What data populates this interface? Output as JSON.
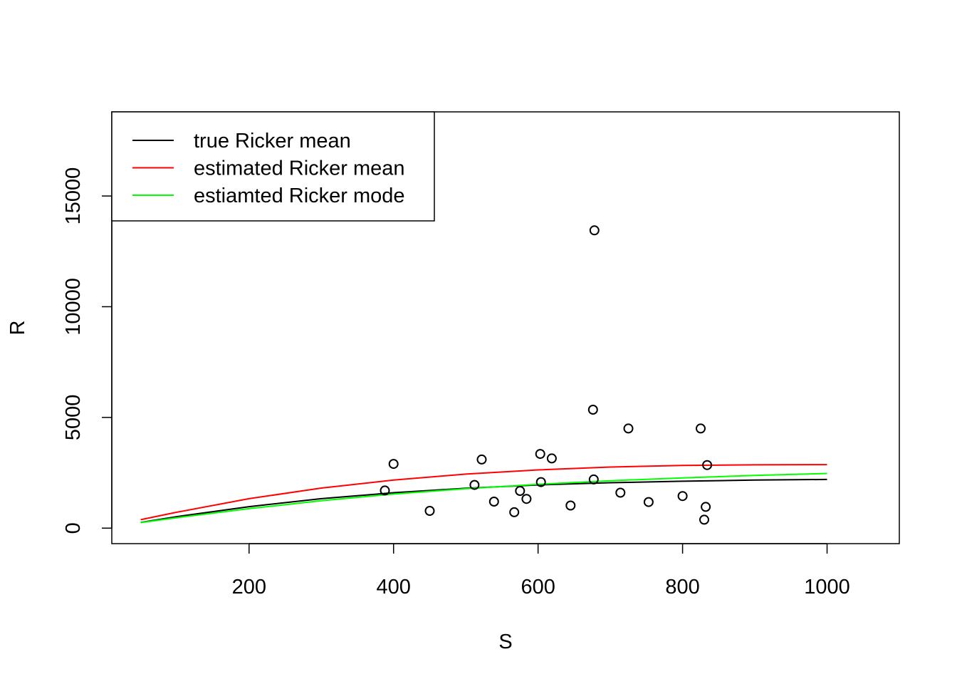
{
  "chart_data": {
    "type": "scatter",
    "title": "",
    "xlabel": "S",
    "ylabel": "R",
    "xlim": [
      10,
      1100
    ],
    "ylim": [
      -700,
      18800
    ],
    "x_ticks": [
      200,
      400,
      600,
      800,
      1000
    ],
    "x_tick_labels": [
      "200",
      "400",
      "600",
      "800",
      "1000"
    ],
    "y_ticks": [
      0,
      5000,
      10000,
      15000
    ],
    "y_tick_labels": [
      "0",
      "5000",
      "10000",
      "15000"
    ],
    "grid": false,
    "legend_position": "top-left",
    "points": [
      {
        "x": 388,
        "y": 1700
      },
      {
        "x": 400,
        "y": 2900
      },
      {
        "x": 450,
        "y": 780
      },
      {
        "x": 512,
        "y": 1950
      },
      {
        "x": 522,
        "y": 3100
      },
      {
        "x": 539,
        "y": 1200
      },
      {
        "x": 567,
        "y": 720
      },
      {
        "x": 575,
        "y": 1680
      },
      {
        "x": 584,
        "y": 1320
      },
      {
        "x": 603,
        "y": 3350
      },
      {
        "x": 604,
        "y": 2080
      },
      {
        "x": 619,
        "y": 3150
      },
      {
        "x": 645,
        "y": 1020
      },
      {
        "x": 676,
        "y": 5350
      },
      {
        "x": 677,
        "y": 2200
      },
      {
        "x": 678,
        "y": 13450
      },
      {
        "x": 714,
        "y": 1600
      },
      {
        "x": 725,
        "y": 4500
      },
      {
        "x": 753,
        "y": 1180
      },
      {
        "x": 800,
        "y": 1450
      },
      {
        "x": 825,
        "y": 4500
      },
      {
        "x": 830,
        "y": 380
      },
      {
        "x": 832,
        "y": 960
      },
      {
        "x": 834,
        "y": 2850
      }
    ],
    "series": [
      {
        "name": "true Ricker mean",
        "color": "#000000",
        "x": [
          50,
          100,
          200,
          300,
          400,
          500,
          600,
          700,
          800,
          900,
          1000
        ],
        "y": [
          260,
          520,
          970,
          1330,
          1600,
          1800,
          1950,
          2050,
          2120,
          2170,
          2200
        ]
      },
      {
        "name": "estimated Ricker mean",
        "color": "#ff0000",
        "x": [
          50,
          100,
          200,
          300,
          400,
          500,
          600,
          700,
          800,
          900,
          1000
        ],
        "y": [
          380,
          720,
          1330,
          1810,
          2170,
          2440,
          2630,
          2760,
          2830,
          2860,
          2870
        ]
      },
      {
        "name": "estiamted Ricker mode",
        "color": "#00ff00",
        "x": [
          50,
          100,
          200,
          300,
          400,
          500,
          600,
          700,
          800,
          900,
          1000
        ],
        "y": [
          250,
          470,
          880,
          1240,
          1540,
          1780,
          1980,
          2140,
          2270,
          2380,
          2470
        ]
      }
    ]
  }
}
